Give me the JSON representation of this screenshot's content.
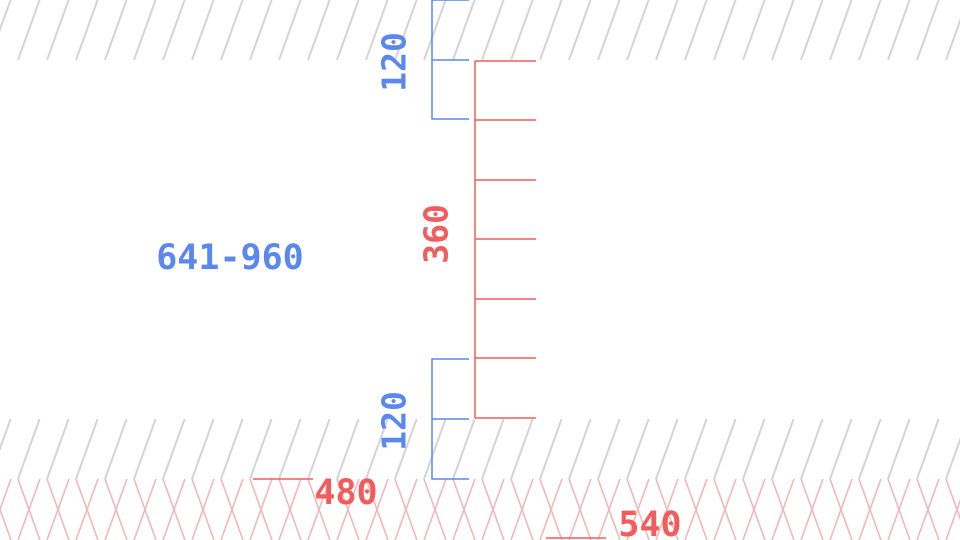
{
  "labels": {
    "range": "641-960",
    "top_span": "120",
    "center_span": "360",
    "bottom_span": "120",
    "edge_a": "480",
    "edge_b": "540"
  },
  "colors": {
    "blue": "#5b87f0",
    "red": "#f25c5c",
    "hatch_gray": "#d4d4d4",
    "hatch_pink": "#f2b8b8"
  }
}
